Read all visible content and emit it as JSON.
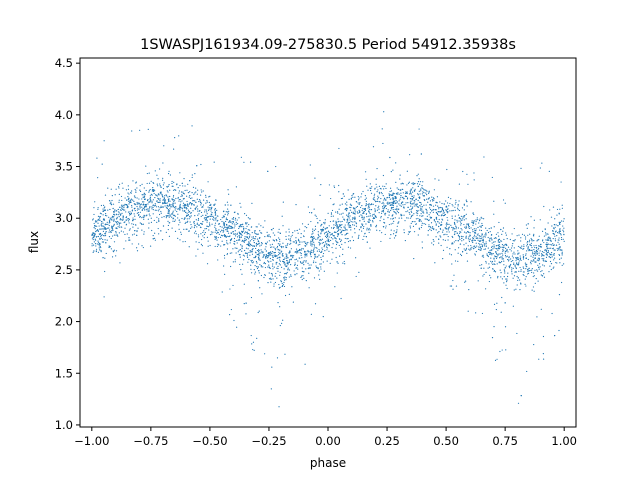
{
  "chart_data": {
    "type": "scatter",
    "title": "1SWASPJ161934.09-275830.5 Period 54912.35938s",
    "xlabel": "phase",
    "ylabel": "flux",
    "xlim": [
      -1.05,
      1.05
    ],
    "ylim": [
      0.98,
      4.55
    ],
    "xticks": [
      -1.0,
      -0.75,
      -0.5,
      -0.25,
      0.0,
      0.25,
      0.5,
      0.75,
      1.0
    ],
    "xtick_labels": [
      "−1.00",
      "−0.75",
      "−0.50",
      "−0.25",
      "0.00",
      "0.25",
      "0.50",
      "0.75",
      "1.00"
    ],
    "yticks": [
      1.0,
      1.5,
      2.0,
      2.5,
      3.0,
      3.5,
      4.0,
      4.5
    ],
    "ytick_labels": [
      "1.0",
      "1.5",
      "2.0",
      "2.5",
      "3.0",
      "3.5",
      "4.0",
      "4.5"
    ],
    "grid": false,
    "marker_color": "#1f77b4",
    "series": [
      {
        "x": [
          -1.0,
          -0.9,
          -0.8,
          -0.7,
          -0.6,
          -0.5,
          -0.4,
          -0.3,
          -0.2,
          -0.1,
          0.0,
          0.1,
          0.2,
          0.3,
          0.4,
          0.5,
          0.6,
          0.7,
          0.8,
          0.9,
          1.0
        ],
        "y": [
          2.83,
          2.98,
          3.11,
          3.17,
          3.11,
          2.99,
          2.85,
          2.68,
          2.58,
          2.66,
          2.83,
          2.98,
          3.11,
          3.17,
          3.11,
          2.99,
          2.85,
          2.68,
          2.58,
          2.66,
          2.83
        ]
      }
    ]
  }
}
